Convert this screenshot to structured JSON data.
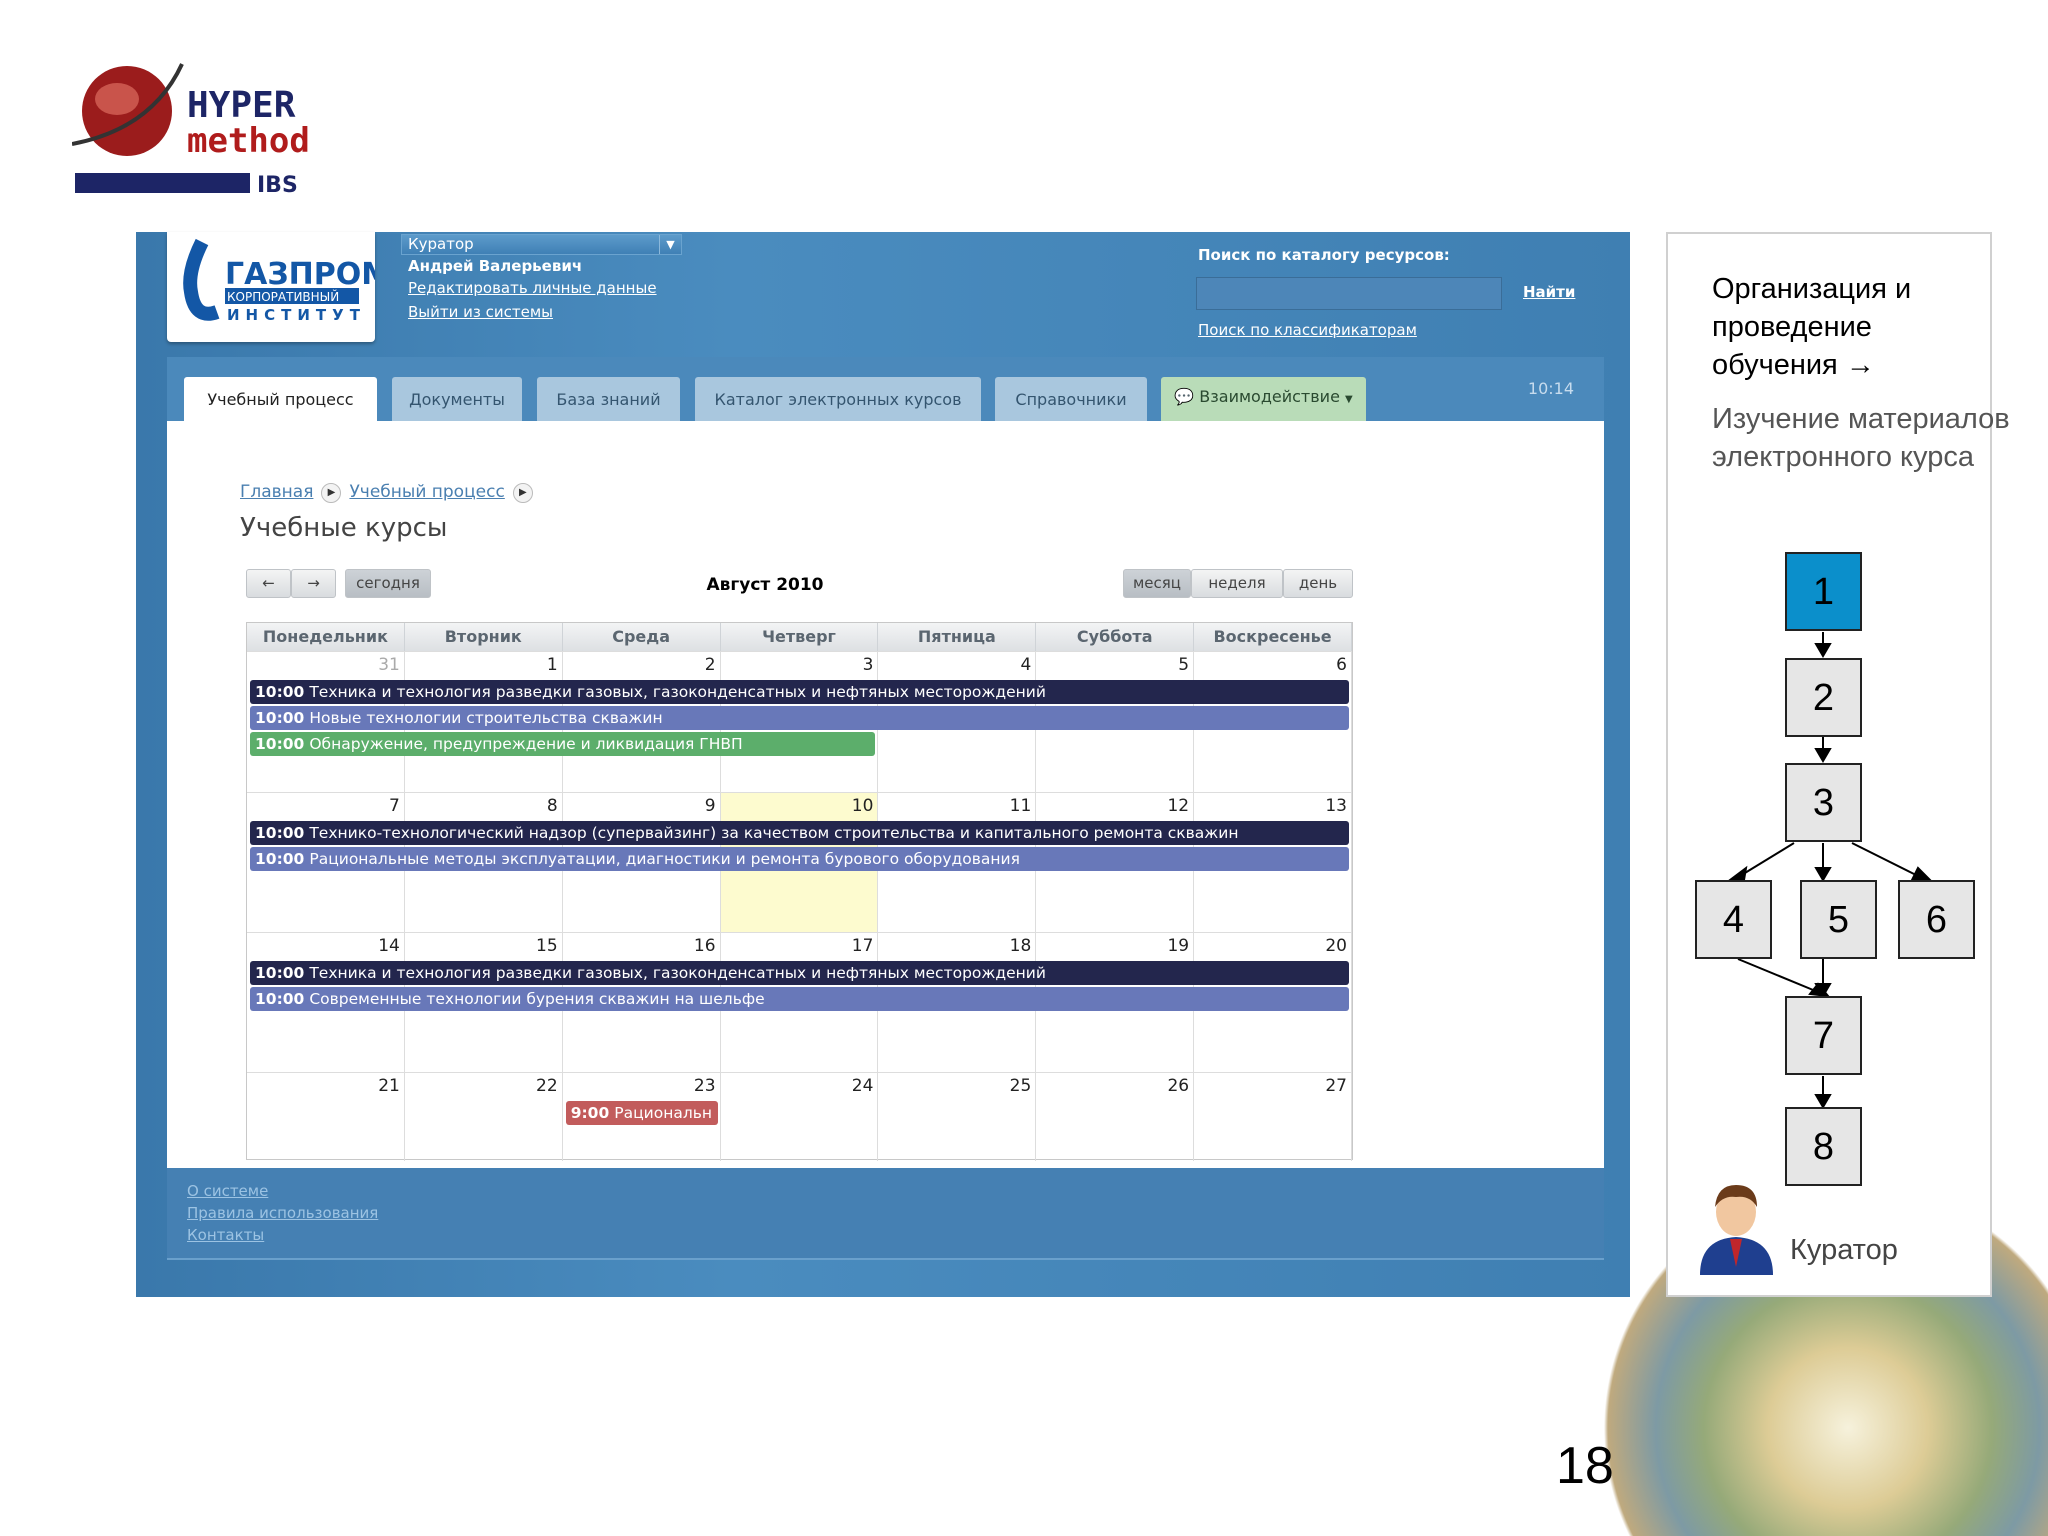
{
  "logo": {
    "line1": "HYPER",
    "line2": "method",
    "line3": "IBS"
  },
  "gazprom_logo": {
    "line1": "ГАЗПРОМ",
    "line2": "КОРПОРАТИВНЫЙ",
    "line3": "ИНСТИТУТ"
  },
  "header": {
    "role": "Куратор",
    "user_name": "Андрей Валерьевич",
    "edit_link": "Редактировать личные данные",
    "logout_link": "Выйти из системы",
    "search_label": "Поиск по каталогу ресурсов:",
    "search_value": "",
    "search_button": "Найти",
    "classifier_link": "Поиск по классификаторам",
    "time": "10:14"
  },
  "tabs": [
    {
      "label": "Учебный процесс",
      "active": true
    },
    {
      "label": "Документы"
    },
    {
      "label": "База знаний"
    },
    {
      "label": "Каталог электронных курсов"
    },
    {
      "label": "Справочники"
    },
    {
      "label": "Взаимодействие"
    }
  ],
  "breadcrumb": [
    "Главная",
    "Учебный процесс"
  ],
  "page_title": "Учебные курсы",
  "calendar": {
    "prev": "←",
    "next": "→",
    "today": "сегодня",
    "title": "Август 2010",
    "views": [
      {
        "label": "месяц",
        "active": true
      },
      {
        "label": "неделя"
      },
      {
        "label": "день"
      }
    ],
    "weekdays": [
      "Понедельник",
      "Вторник",
      "Среда",
      "Четверг",
      "Пятница",
      "Суббота",
      "Воскресенье"
    ],
    "today_date": "10",
    "weeks": [
      {
        "days": [
          "31",
          "1",
          "2",
          "3",
          "4",
          "5",
          "6"
        ],
        "other_month": [
          "31"
        ],
        "events": [
          {
            "time": "10:00",
            "title": "Техника и технология разведки газовых, газоконденсатных и нефтяных месторождений",
            "start": "31",
            "end": "6",
            "color": "#23264d"
          },
          {
            "time": "10:00",
            "title": "Новые технологии строительства скважин",
            "start": "31",
            "end": "6",
            "color": "#6878b9"
          },
          {
            "time": "10:00",
            "title": "Обнаружение, предупреждение и ликвидация ГНВП",
            "start": "31",
            "end": "3",
            "color": "#5cae6b"
          }
        ]
      },
      {
        "days": [
          "7",
          "8",
          "9",
          "10",
          "11",
          "12",
          "13"
        ],
        "events": [
          {
            "time": "10:00",
            "title": "Технико-технологический надзор (супервайзинг) за качеством строительства и капитального ремонта скважин",
            "start": "7",
            "end": "13",
            "color": "#23264d"
          },
          {
            "time": "10:00",
            "title": "Рациональные методы эксплуатации, диагностики и ремонта бурового оборудования",
            "start": "7",
            "end": "13",
            "color": "#6878b9"
          }
        ]
      },
      {
        "days": [
          "14",
          "15",
          "16",
          "17",
          "18",
          "19",
          "20"
        ],
        "events": [
          {
            "time": "10:00",
            "title": "Техника и технология разведки газовых, газоконденсатных и нефтяных месторождений",
            "start": "14",
            "end": "20",
            "color": "#23264d"
          },
          {
            "time": "10:00",
            "title": "Современные технологии бурения скважин на шельфе",
            "start": "14",
            "end": "20",
            "color": "#6878b9"
          }
        ]
      },
      {
        "days": [
          "21",
          "22",
          "23",
          "24",
          "25",
          "26",
          "27"
        ],
        "events": [
          {
            "time": "9:00",
            "title": "Рациональн",
            "start": "23",
            "end": "23",
            "color": "#c25c5c"
          }
        ]
      }
    ]
  },
  "footer": [
    "О системе",
    "Правила использования",
    "Контакты"
  ],
  "panel": {
    "heading": "Организация и проведение обучения →",
    "subheading": "Изучение материалов электронного курса",
    "steps": [
      "1",
      "2",
      "3",
      "4",
      "5",
      "6",
      "7",
      "8"
    ],
    "active_step": "1",
    "active_color": "#0b8fcb",
    "role_label": "Куратор"
  },
  "page_number": "18"
}
